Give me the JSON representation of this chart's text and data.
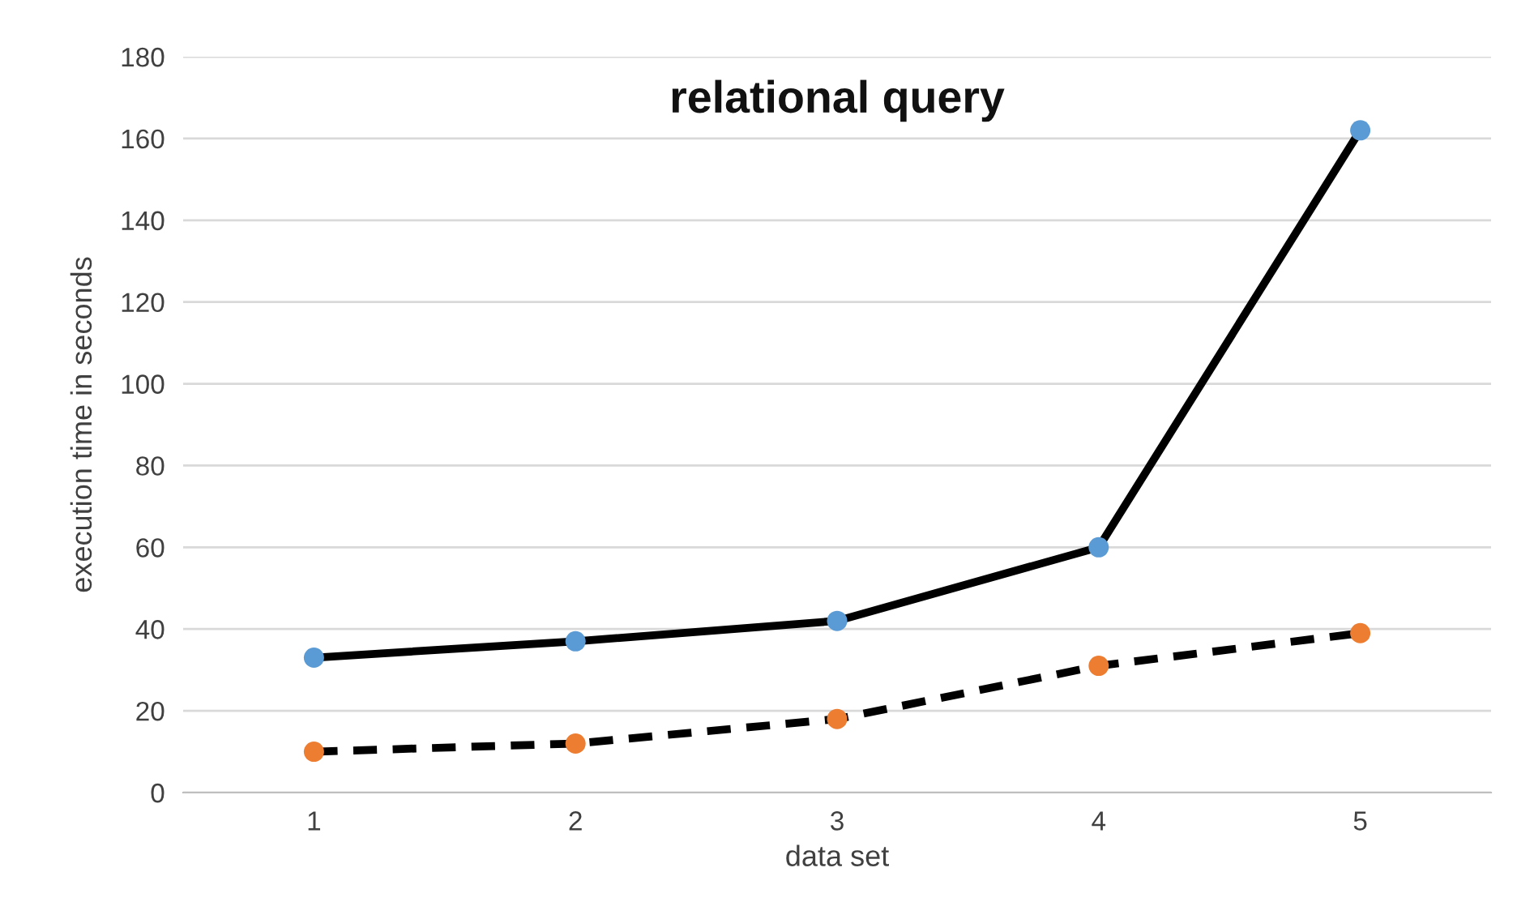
{
  "chart_data": {
    "type": "line",
    "title": "relational query",
    "xlabel": "data set",
    "ylabel": "execution time in seconds",
    "categories": [
      "1",
      "2",
      "3",
      "4",
      "5"
    ],
    "series": [
      {
        "color": "#000000",
        "colors": [
          "#5b9bd5",
          "#5b9bd5",
          "#5b9bd5",
          "#5b9bd5",
          "#5b9bd5"
        ],
        "line_style": "solid",
        "values": [
          33,
          37,
          42,
          60,
          162
        ]
      },
      {
        "color": "#000000",
        "colors": [
          "#ed7d31",
          "#ed7d31",
          "#ed7d31",
          "#ed7d31",
          "#ed7d31"
        ],
        "line_style": "dashed",
        "values": [
          10,
          12,
          18,
          31,
          39
        ]
      }
    ],
    "ylim": [
      0,
      180
    ],
    "yticks": [
      0,
      20,
      40,
      60,
      80,
      100,
      120,
      140,
      160,
      180
    ],
    "grid": "y",
    "marker": "circle"
  }
}
